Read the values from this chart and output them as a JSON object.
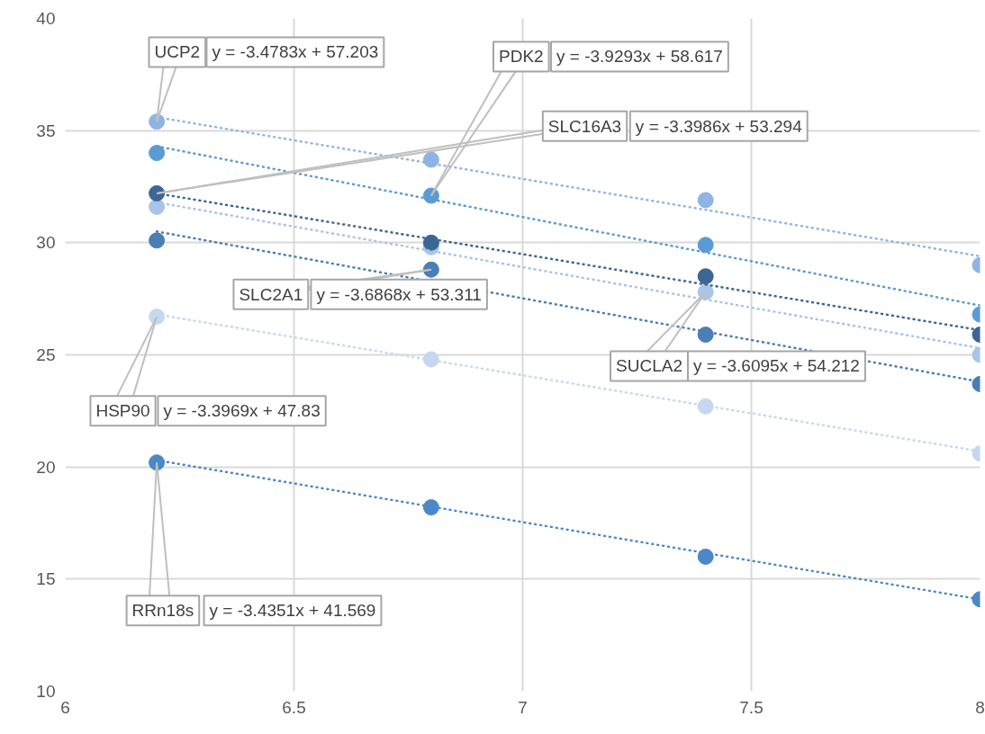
{
  "chart_data": {
    "type": "scatter",
    "marker": "circle",
    "grid": true,
    "xlim": [
      6,
      8
    ],
    "xticks": [
      6,
      6.5,
      7,
      7.5,
      8
    ],
    "ylim": [
      10,
      40
    ],
    "yticks": [
      10,
      15,
      20,
      25,
      30,
      35,
      40
    ],
    "series": [
      {
        "name": "UCP2",
        "color": "#8eb4e3",
        "x": [
          6.2,
          6.8,
          7.4,
          8
        ],
        "values": [
          35.4,
          33.7,
          31.9,
          29.0
        ]
      },
      {
        "name": "PDK2",
        "color": "#5b9bd5",
        "x": [
          6.2,
          6.8,
          7.4,
          8
        ],
        "values": [
          34.0,
          32.1,
          29.9,
          26.8
        ]
      },
      {
        "name": "SUCLA2",
        "color": "#a9c4e6",
        "x": [
          6.2,
          6.8,
          7.4,
          8
        ],
        "values": [
          31.6,
          29.8,
          27.8,
          25.0
        ]
      },
      {
        "name": "SLC16A3",
        "color": "#3c6694",
        "x": [
          6.2,
          6.8,
          7.4,
          8
        ],
        "values": [
          32.2,
          30.0,
          28.5,
          25.9
        ]
      },
      {
        "name": "SLC2A1",
        "color": "#4a7eb5",
        "x": [
          6.2,
          6.8,
          7.4,
          8
        ],
        "values": [
          30.1,
          28.8,
          25.9,
          23.7
        ]
      },
      {
        "name": "HSP90",
        "color": "#c5d8ef",
        "x": [
          6.2,
          6.8,
          7.4,
          8
        ],
        "values": [
          26.7,
          24.8,
          22.7,
          20.6
        ]
      },
      {
        "name": "RRn18s",
        "color": "#4b88c8",
        "x": [
          6.2,
          6.8,
          7.4,
          8
        ],
        "values": [
          20.2,
          18.2,
          16.0,
          14.1
        ]
      },
      {
        "type": "line",
        "marker": "none",
        "line_style": "dotted",
        "color": "#8eb4e3",
        "x": [
          6.2,
          8
        ],
        "values": [
          35.6,
          29.4
        ]
      },
      {
        "type": "line",
        "marker": "none",
        "line_style": "dotted",
        "color": "#5b9bd5",
        "x": [
          6.2,
          8
        ],
        "values": [
          34.3,
          27.2
        ]
      },
      {
        "type": "line",
        "marker": "none",
        "line_style": "dotted",
        "color": "#3c6694",
        "x": [
          6.2,
          8
        ],
        "values": [
          32.2,
          26.1
        ]
      },
      {
        "type": "line",
        "marker": "none",
        "line_style": "dotted",
        "color": "#4a7eb5",
        "x": [
          6.2,
          8
        ],
        "values": [
          30.5,
          23.8
        ]
      },
      {
        "type": "line",
        "marker": "none",
        "line_style": "dotted",
        "color": "#a9c4e6",
        "x": [
          6.2,
          8
        ],
        "values": [
          31.8,
          25.3
        ]
      },
      {
        "type": "line",
        "marker": "none",
        "line_style": "dotted",
        "color": "#c5d8ef",
        "x": [
          6.2,
          8
        ],
        "values": [
          26.8,
          20.7
        ]
      },
      {
        "type": "line",
        "marker": "none",
        "line_style": "dotted",
        "color": "#4b88c8",
        "x": [
          6.2,
          8
        ],
        "values": [
          20.3,
          14.1
        ]
      }
    ],
    "annotations": [
      "y = -3.4783x + 57.203",
      "y = -3.9293x + 58.617",
      "y = -3.6095x + 54.212",
      "y = -3.3986x + 53.294",
      "y = -3.6868x + 53.311",
      "y = -3.3969x + 47.83",
      "y = -3.4351x + 41.569"
    ]
  }
}
